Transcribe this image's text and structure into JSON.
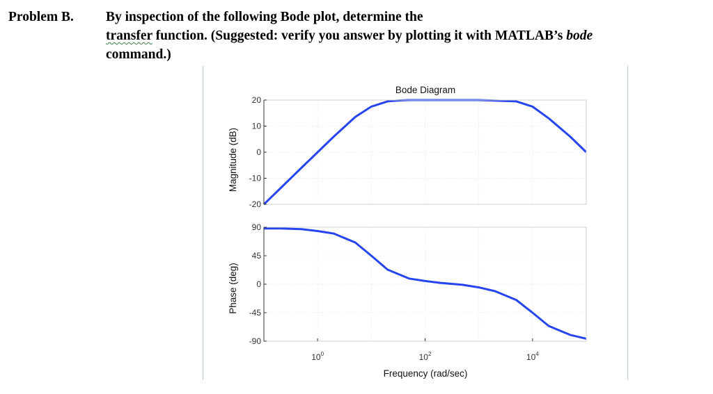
{
  "problem": {
    "label": "Problem B.",
    "line1": "By inspection of the following Bode plot, determine the",
    "line2_squiggle": "transfer",
    "line2_rest": " function. (Suggested:  verify you answer by plotting it with MATLAB’s ",
    "line2_italic": "bode",
    "line3": "command.)"
  },
  "chart_data": {
    "type": "line",
    "title": "Bode Diagram",
    "xlabel": "Frequency (rad/sec)",
    "xscale": "log",
    "xlim": [
      0.1,
      100000
    ],
    "xticks": [
      {
        "value": 1,
        "base": "10",
        "exp": "0"
      },
      {
        "value": 100,
        "base": "10",
        "exp": "2"
      },
      {
        "value": 10000,
        "base": "10",
        "exp": "4"
      }
    ],
    "grid": true,
    "line_color": "#2645f0",
    "panels": [
      {
        "name": "magnitude",
        "ylabel": "Magnitude (dB)",
        "ylim": [
          -20,
          20
        ],
        "yticks": [
          20,
          10,
          0,
          -10,
          -20
        ],
        "x": [
          0.1,
          0.2,
          0.5,
          1,
          2,
          5,
          10,
          20,
          30,
          50,
          100,
          200,
          500,
          1000,
          2000,
          5000,
          10000,
          20000,
          50000,
          100000
        ],
        "y": [
          -20,
          -14,
          -6,
          0,
          6,
          13.5,
          17.5,
          19.5,
          19.8,
          20,
          20,
          20,
          20,
          20,
          19.8,
          19.5,
          17.5,
          13,
          6,
          0
        ]
      },
      {
        "name": "phase",
        "ylabel": "Phase (deg)",
        "ylim": [
          -90,
          90
        ],
        "yticks": [
          90,
          45,
          0,
          -45,
          -90
        ],
        "x": [
          0.1,
          0.2,
          0.5,
          1,
          2,
          5,
          10,
          20,
          50,
          100,
          200,
          500,
          1000,
          2000,
          5000,
          10000,
          20000,
          50000,
          100000
        ],
        "y": [
          88,
          88,
          87,
          84,
          80,
          66,
          45,
          23,
          9,
          5,
          2,
          -1,
          -5,
          -11,
          -25,
          -45,
          -66,
          -80,
          -86
        ]
      }
    ]
  }
}
